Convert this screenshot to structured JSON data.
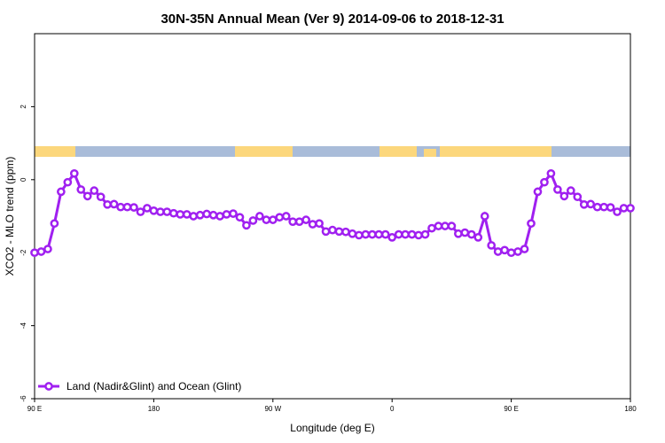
{
  "chart_data": {
    "type": "line",
    "title": "30N-35N Annual Mean (Ver 9)   2014-09-06 to 2018-12-31",
    "x_label": "Longitude (deg E)",
    "y_label": "XCO2 - MLO trend (ppm)",
    "x": [
      90,
      95,
      100,
      105,
      110,
      115,
      120,
      125,
      130,
      135,
      140,
      145,
      150,
      155,
      160,
      165,
      170,
      175,
      180,
      185,
      190,
      195,
      200,
      205,
      210,
      215,
      220,
      225,
      230,
      235,
      240,
      245,
      250,
      255,
      260,
      265,
      270,
      275,
      280,
      285,
      290,
      295,
      300,
      305,
      310,
      315,
      320,
      325,
      330,
      335,
      340,
      345,
      350,
      355,
      360,
      365,
      370,
      375,
      380,
      385,
      390,
      395,
      400,
      405,
      410,
      415,
      420,
      425,
      430,
      435,
      440,
      445,
      450,
      455,
      460,
      465,
      470,
      475,
      480,
      485,
      490,
      495,
      500,
      505,
      510,
      515,
      520,
      525,
      530,
      535,
      540
    ],
    "series": [
      {
        "name": "Land (Nadir&Glint) and Ocean (Glint)",
        "color": "#a020f0",
        "values": [
          -2.0,
          -1.97,
          -1.9,
          -1.2,
          -0.33,
          -0.07,
          0.17,
          -0.27,
          -0.45,
          -0.3,
          -0.47,
          -0.68,
          -0.67,
          -0.75,
          -0.75,
          -0.76,
          -0.88,
          -0.78,
          -0.85,
          -0.88,
          -0.88,
          -0.92,
          -0.95,
          -0.95,
          -1.0,
          -0.97,
          -0.94,
          -0.97,
          -1.0,
          -0.95,
          -0.93,
          -1.03,
          -1.25,
          -1.12,
          -1.0,
          -1.1,
          -1.1,
          -1.03,
          -1.0,
          -1.15,
          -1.15,
          -1.1,
          -1.22,
          -1.2,
          -1.42,
          -1.38,
          -1.42,
          -1.43,
          -1.48,
          -1.52,
          -1.5,
          -1.5,
          -1.5,
          -1.5,
          -1.58,
          -1.5,
          -1.5,
          -1.5,
          -1.52,
          -1.5,
          -1.33,
          -1.27,
          -1.27,
          -1.27,
          -1.48,
          -1.45,
          -1.5,
          -1.58,
          -1.0,
          -1.8,
          -1.97,
          -1.93,
          -2.0,
          -1.97,
          -1.9,
          -1.2,
          -0.33,
          -0.07,
          0.17,
          -0.27,
          -0.45,
          -0.3,
          -0.47,
          -0.68,
          -0.67,
          -0.75,
          -0.75,
          -0.76,
          -0.88,
          -0.78,
          -0.78
        ]
      }
    ],
    "xlim": [
      90,
      540
    ],
    "xticks": [
      {
        "value": 90,
        "label": "90 E"
      },
      180,
      {
        "value": 270,
        "label": "90 W"
      },
      {
        "value": 360,
        "label": "0"
      },
      {
        "value": 450,
        "label": "90 E"
      },
      {
        "value": 540,
        "label": "180"
      }
    ],
    "ylim": [
      -6,
      4
    ],
    "yticks": [
      -6,
      -4,
      -2,
      0,
      2
    ],
    "legend": "bottom-left"
  }
}
